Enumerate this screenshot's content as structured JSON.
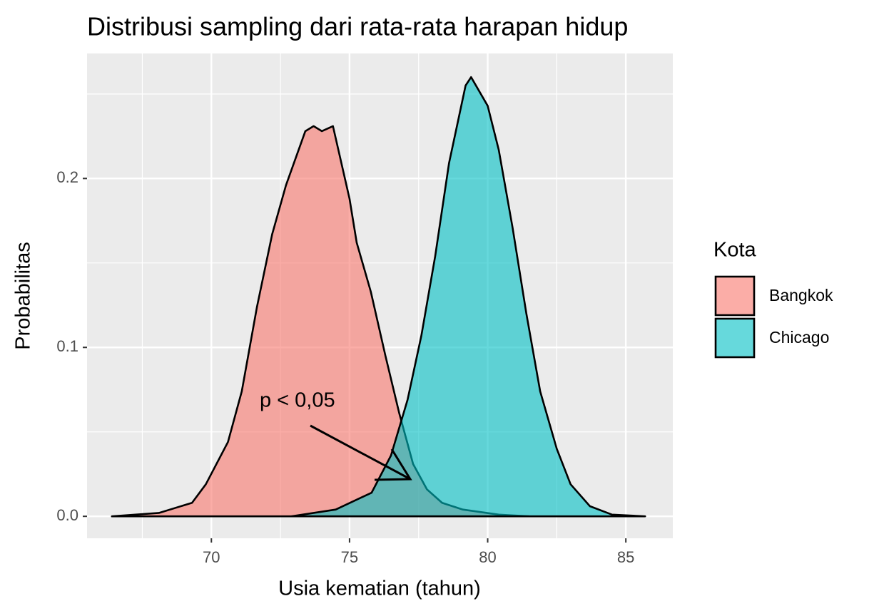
{
  "chart_data": {
    "type": "density",
    "title": "Distribusi sampling dari rata-rata harapan hidup",
    "x_label": "Usia kematian (tahun)",
    "y_label": "Probabilitas",
    "legend_title": "Kota",
    "legend_position": "right",
    "grid": true,
    "xlim": [
      65.5,
      86.7
    ],
    "ylim": [
      -0.013,
      0.274
    ],
    "xticks": [
      70,
      75,
      80,
      85
    ],
    "yticks": [
      {
        "value": 0,
        "label": "0.0"
      },
      0.1,
      0.2
    ],
    "minor_xticks": [
      67.5,
      72.5,
      77.5,
      82.5
    ],
    "minor_yticks": [
      0.05,
      0.15,
      0.25
    ],
    "annotation": "p < 0,05",
    "series": [
      {
        "name": "Bangkok",
        "color": "#f8766d",
        "x": [
          66.4,
          68.1,
          69.3,
          69.8,
          70.6,
          71.1,
          71.65,
          72.2,
          72.7,
          73.4,
          73.7,
          74.0,
          74.4,
          75.0,
          75.26,
          75.77,
          76.3,
          76.8,
          77.3,
          77.8,
          78.35,
          79.1,
          80.4,
          81.5
        ],
        "values": [
          0,
          0.002,
          0.008,
          0.019,
          0.044,
          0.074,
          0.124,
          0.167,
          0.196,
          0.228,
          0.231,
          0.228,
          0.231,
          0.188,
          0.162,
          0.133,
          0.095,
          0.061,
          0.031,
          0.016,
          0.008,
          0.004,
          0.001,
          0
        ]
      },
      {
        "name": "Chicago",
        "color": "#00bfc4",
        "x": [
          72.9,
          74.5,
          75.8,
          76.5,
          77.1,
          77.6,
          78.1,
          78.6,
          79.2,
          79.4,
          80.0,
          80.4,
          80.9,
          81.4,
          81.9,
          82.5,
          83.0,
          83.7,
          84.5,
          85.7
        ],
        "values": [
          0,
          0.004,
          0.014,
          0.036,
          0.069,
          0.107,
          0.154,
          0.209,
          0.255,
          0.26,
          0.243,
          0.217,
          0.171,
          0.12,
          0.074,
          0.04,
          0.019,
          0.006,
          0.001,
          0
        ]
      }
    ]
  }
}
